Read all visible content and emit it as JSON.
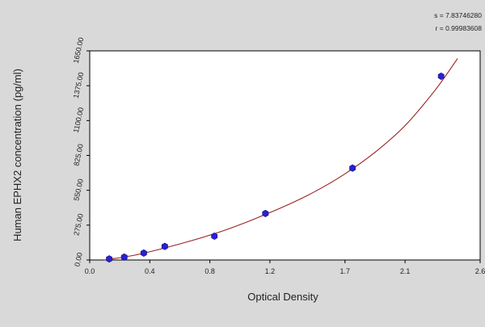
{
  "chart_data": {
    "type": "scatter",
    "title": "",
    "xlabel": "Optical Density",
    "ylabel": "Human EPHX2 concentration (pg/ml)",
    "xlim": [
      0.0,
      2.6
    ],
    "ylim": [
      0,
      1650
    ],
    "x_ticks": [
      0.0,
      0.4,
      0.8,
      1.2,
      1.7,
      2.1,
      2.6
    ],
    "x_tick_labels": [
      "0.0",
      "0.4",
      "0.8",
      "1.2",
      "1.7",
      "2.1",
      "2.6"
    ],
    "y_ticks": [
      0,
      275,
      550,
      825,
      1100,
      1375,
      1650
    ],
    "y_tick_labels": [
      "0.00",
      "275.00",
      "550.00",
      "825.00",
      "1100.00",
      "1375.00",
      "1650.00"
    ],
    "stats": {
      "s_label": "s = 7.83746280",
      "r_label": "r = 0.99983608"
    },
    "grid": false,
    "series": [
      {
        "name": "",
        "kind": "points",
        "color": "#2a1fd6",
        "x": [
          0.13,
          0.23,
          0.36,
          0.5,
          0.83,
          1.17,
          1.75,
          2.34
        ],
        "y": [
          8,
          23,
          55,
          107,
          188,
          367,
          725,
          1450
        ]
      },
      {
        "name": "",
        "kind": "fit-curve",
        "color": "#9b2020",
        "x": [
          0.1,
          0.3,
          0.5,
          0.7,
          0.9,
          1.1,
          1.3,
          1.5,
          1.7,
          1.9,
          2.1,
          2.3,
          2.45
        ],
        "y": [
          0,
          38,
          95,
          160,
          235,
          325,
          425,
          540,
          680,
          850,
          1060,
          1340,
          1590
        ]
      }
    ]
  }
}
